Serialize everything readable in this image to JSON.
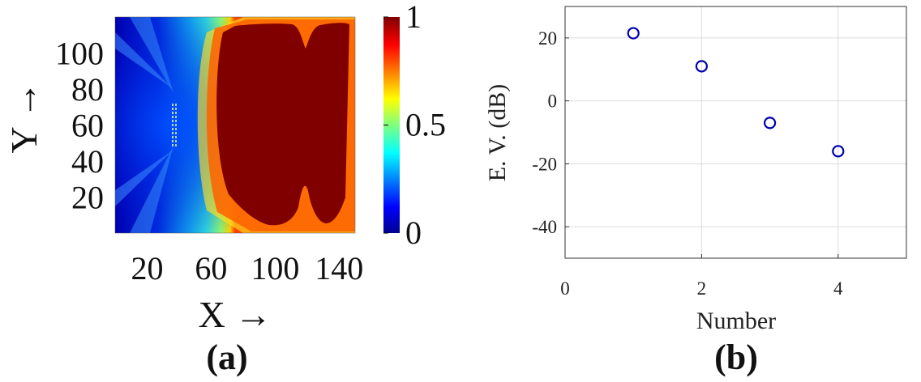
{
  "figure": {
    "panel_a_label": "(a)",
    "panel_b_label": "(b)"
  },
  "chart_data": [
    {
      "type": "heatmap",
      "title": "",
      "xlabel": "X →",
      "ylabel": "Y →",
      "xlim": [
        0,
        150
      ],
      "ylim": [
        0,
        120
      ],
      "xticks": [
        20,
        60,
        100,
        140
      ],
      "xtick_labels": [
        "20",
        "60",
        "100",
        "140"
      ],
      "yticks": [
        20,
        40,
        60,
        80,
        100
      ],
      "ytick_labels": [
        "20",
        "40",
        "60",
        "80",
        "100"
      ],
      "colorbar": {
        "range": [
          0,
          1
        ],
        "ticks": [
          0,
          0.5,
          1
        ],
        "tick_labels": [
          "0",
          "0.5",
          "1"
        ],
        "colormap": "jet"
      },
      "description_values": {
        "source_array_x": 37,
        "source_array_y_range": [
          45,
          76
        ],
        "saturated_region_x_range": [
          60,
          146
        ]
      },
      "colors": {
        "low": "#00008f",
        "mid": "#20c8f0",
        "high": "#800000"
      }
    },
    {
      "type": "scatter",
      "title": "",
      "xlabel": "Number",
      "ylabel": "E. V. (dB)",
      "xlim": [
        0,
        5
      ],
      "ylim": [
        -50,
        30
      ],
      "xticks": [
        0,
        2,
        4
      ],
      "xtick_labels": [
        "0",
        "2",
        "4"
      ],
      "yticks": [
        -40,
        -20,
        0,
        20
      ],
      "ytick_labels": [
        "-40",
        "-20",
        "0",
        "20"
      ],
      "grid": true,
      "marker": "circle-open",
      "marker_color": "#0000b0",
      "x": [
        1,
        2,
        3,
        4
      ],
      "y": [
        21.5,
        11,
        -7,
        -16
      ]
    }
  ]
}
